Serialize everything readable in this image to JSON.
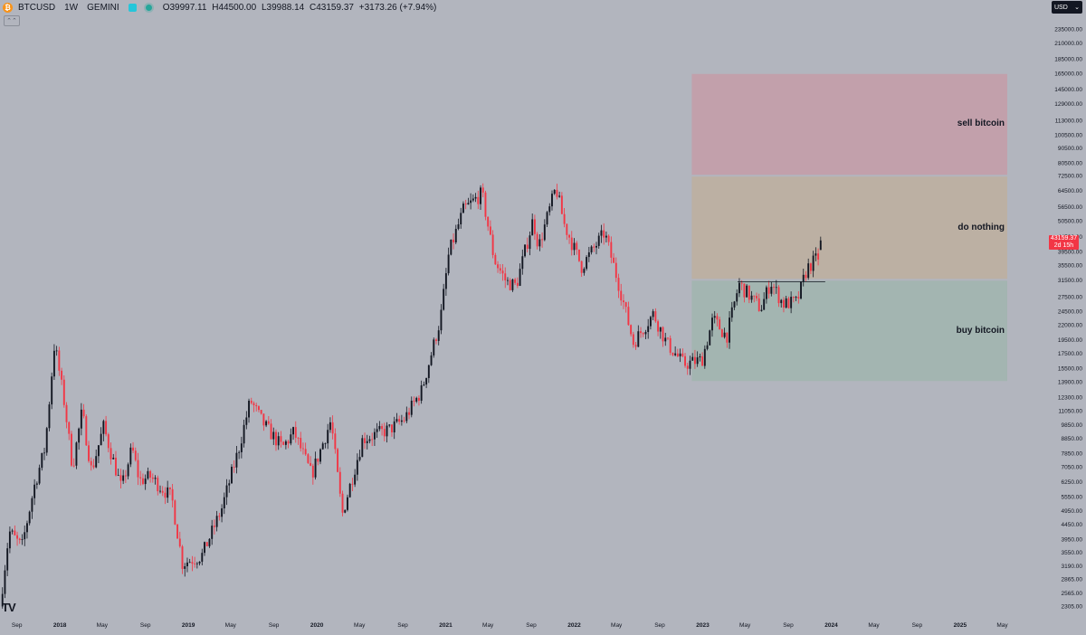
{
  "header": {
    "coin_glyph": "₿",
    "symbol": "BTCUSD",
    "interval": "1W",
    "exchange": "GEMINI",
    "ohlc": {
      "o_label": "O",
      "o_value": "39997.11",
      "h_label": "H",
      "h_value": "44500.00",
      "l_label": "L",
      "l_value": "39988.14",
      "c_label": "C",
      "c_value": "43159.37",
      "change": "+3173.26 (+7.94%)"
    },
    "collapse_glyph": "⌃⌃"
  },
  "currency_select": {
    "value": "USD"
  },
  "last_price": {
    "price": "43159.37",
    "countdown": "2d 15h",
    "value": 43159.37
  },
  "logo_text": "TV",
  "colors": {
    "background": "#b2b5be",
    "up_candle": "#131722",
    "down_candle": "#f23645",
    "sell_zone": "#c2a0ab",
    "hold_zone": "#bcb0a3",
    "buy_zone": "#a3b5b1"
  },
  "chart_data": {
    "type": "candlestick",
    "symbol": "BTCUSD",
    "interval": "1W",
    "y_scale": "log",
    "ylim": [
      2100,
      260000
    ],
    "xlim": [
      "2017-07-15",
      "2025-08-31"
    ],
    "y_tick_labels": [
      "2305.00",
      "2565.00",
      "2865.00",
      "3190.00",
      "3550.00",
      "3950.00",
      "4450.00",
      "4950.00",
      "5550.00",
      "6250.00",
      "7050.00",
      "7850.00",
      "8850.00",
      "9850.00",
      "11050.00",
      "12300.00",
      "13900.00",
      "15500.00",
      "17500.00",
      "19500.00",
      "22000.00",
      "24500.00",
      "27500.00",
      "31500.00",
      "35500.00",
      "39500.00",
      "44500.00",
      "50500.00",
      "56500.00",
      "64500.00",
      "72500.00",
      "80500.00",
      "90500.00",
      "100500.00",
      "113000.00",
      "129000.00",
      "145000.00",
      "165000.00",
      "185000.00",
      "210000.00",
      "235000.00"
    ],
    "x_tick_labels": [
      {
        "label": "Sep",
        "date": "2017-09-01"
      },
      {
        "label": "2018",
        "date": "2018-01-01"
      },
      {
        "label": "May",
        "date": "2018-05-01"
      },
      {
        "label": "Sep",
        "date": "2018-09-01"
      },
      {
        "label": "2019",
        "date": "2019-01-01"
      },
      {
        "label": "May",
        "date": "2019-05-01"
      },
      {
        "label": "Sep",
        "date": "2019-09-01"
      },
      {
        "label": "2020",
        "date": "2020-01-01"
      },
      {
        "label": "May",
        "date": "2020-05-01"
      },
      {
        "label": "Sep",
        "date": "2020-09-01"
      },
      {
        "label": "2021",
        "date": "2021-01-01"
      },
      {
        "label": "May",
        "date": "2021-05-01"
      },
      {
        "label": "Sep",
        "date": "2021-09-01"
      },
      {
        "label": "2022",
        "date": "2022-01-01"
      },
      {
        "label": "May",
        "date": "2022-05-01"
      },
      {
        "label": "Sep",
        "date": "2022-09-01"
      },
      {
        "label": "2023",
        "date": "2023-01-01"
      },
      {
        "label": "May",
        "date": "2023-05-01"
      },
      {
        "label": "Sep",
        "date": "2023-09-01"
      },
      {
        "label": "2024",
        "date": "2024-01-01"
      },
      {
        "label": "May",
        "date": "2024-05-01"
      },
      {
        "label": "Sep",
        "date": "2024-09-01"
      },
      {
        "label": "2025",
        "date": "2025-01-01"
      },
      {
        "label": "May",
        "date": "2025-05-01"
      }
    ],
    "price_path": [
      [
        "2017-07-15",
        2300
      ],
      [
        "2017-08-10",
        4200
      ],
      [
        "2017-09-15",
        3700
      ],
      [
        "2017-10-20",
        6000
      ],
      [
        "2017-11-20",
        8200
      ],
      [
        "2017-12-17",
        19000
      ],
      [
        "2018-01-15",
        11500
      ],
      [
        "2018-02-06",
        7000
      ],
      [
        "2018-03-05",
        11000
      ],
      [
        "2018-04-01",
        6800
      ],
      [
        "2018-05-05",
        9700
      ],
      [
        "2018-06-25",
        5900
      ],
      [
        "2018-07-25",
        8200
      ],
      [
        "2018-08-15",
        6300
      ],
      [
        "2018-09-15",
        6500
      ],
      [
        "2018-11-15",
        5500
      ],
      [
        "2018-12-15",
        3250
      ],
      [
        "2019-02-08",
        3450
      ],
      [
        "2019-04-05",
        5000
      ],
      [
        "2019-05-25",
        8200
      ],
      [
        "2019-06-26",
        12000
      ],
      [
        "2019-08-01",
        10000
      ],
      [
        "2019-09-25",
        8200
      ],
      [
        "2019-10-28",
        9300
      ],
      [
        "2019-12-17",
        6600
      ],
      [
        "2020-02-10",
        10200
      ],
      [
        "2020-03-13",
        4800
      ],
      [
        "2020-05-10",
        8800
      ],
      [
        "2020-07-25",
        9500
      ],
      [
        "2020-09-05",
        10300
      ],
      [
        "2020-10-25",
        13000
      ],
      [
        "2020-12-17",
        23000
      ],
      [
        "2021-01-10",
        39000
      ],
      [
        "2021-02-20",
        55000
      ],
      [
        "2021-04-14",
        63000
      ],
      [
        "2021-05-19",
        37000
      ],
      [
        "2021-06-22",
        31000
      ],
      [
        "2021-07-20",
        30000
      ],
      [
        "2021-09-06",
        51000
      ],
      [
        "2021-09-22",
        41000
      ],
      [
        "2021-11-10",
        66000
      ],
      [
        "2021-12-04",
        49000
      ],
      [
        "2022-01-22",
        35000
      ],
      [
        "2022-03-28",
        46000
      ],
      [
        "2022-05-12",
        29000
      ],
      [
        "2022-06-18",
        19000
      ],
      [
        "2022-08-14",
        24000
      ],
      [
        "2022-09-20",
        19000
      ],
      [
        "2022-11-09",
        16000
      ],
      [
        "2022-12-30",
        16600
      ],
      [
        "2023-01-30",
        23000
      ],
      [
        "2023-03-10",
        20000
      ],
      [
        "2023-04-14",
        30500
      ],
      [
        "2023-06-15",
        25000
      ],
      [
        "2023-07-13",
        31000
      ],
      [
        "2023-08-17",
        26000
      ],
      [
        "2023-09-25",
        26300
      ],
      [
        "2023-10-24",
        34500
      ],
      [
        "2023-11-25",
        37800
      ],
      [
        "2023-12-06",
        43159
      ]
    ],
    "last_candle": {
      "open": 39997.11,
      "high": 44500.0,
      "low": 39988.14,
      "close": 43159.37
    },
    "zones": [
      {
        "label": "sell bitcoin",
        "x_from": "2022-12-01",
        "x_to": "2025-05-15",
        "y_low": 72500,
        "y_high": 165000
      },
      {
        "label": "do nothing",
        "x_from": "2022-12-01",
        "x_to": "2025-05-15",
        "y_low": 31500,
        "y_high": 72500
      },
      {
        "label": "buy bitcoin",
        "x_from": "2022-12-01",
        "x_to": "2025-05-15",
        "y_low": 13900,
        "y_high": 31500
      }
    ],
    "horizontal_ray": {
      "x_from": "2023-04-10",
      "x_to": "2023-12-15",
      "y": 31000
    }
  }
}
